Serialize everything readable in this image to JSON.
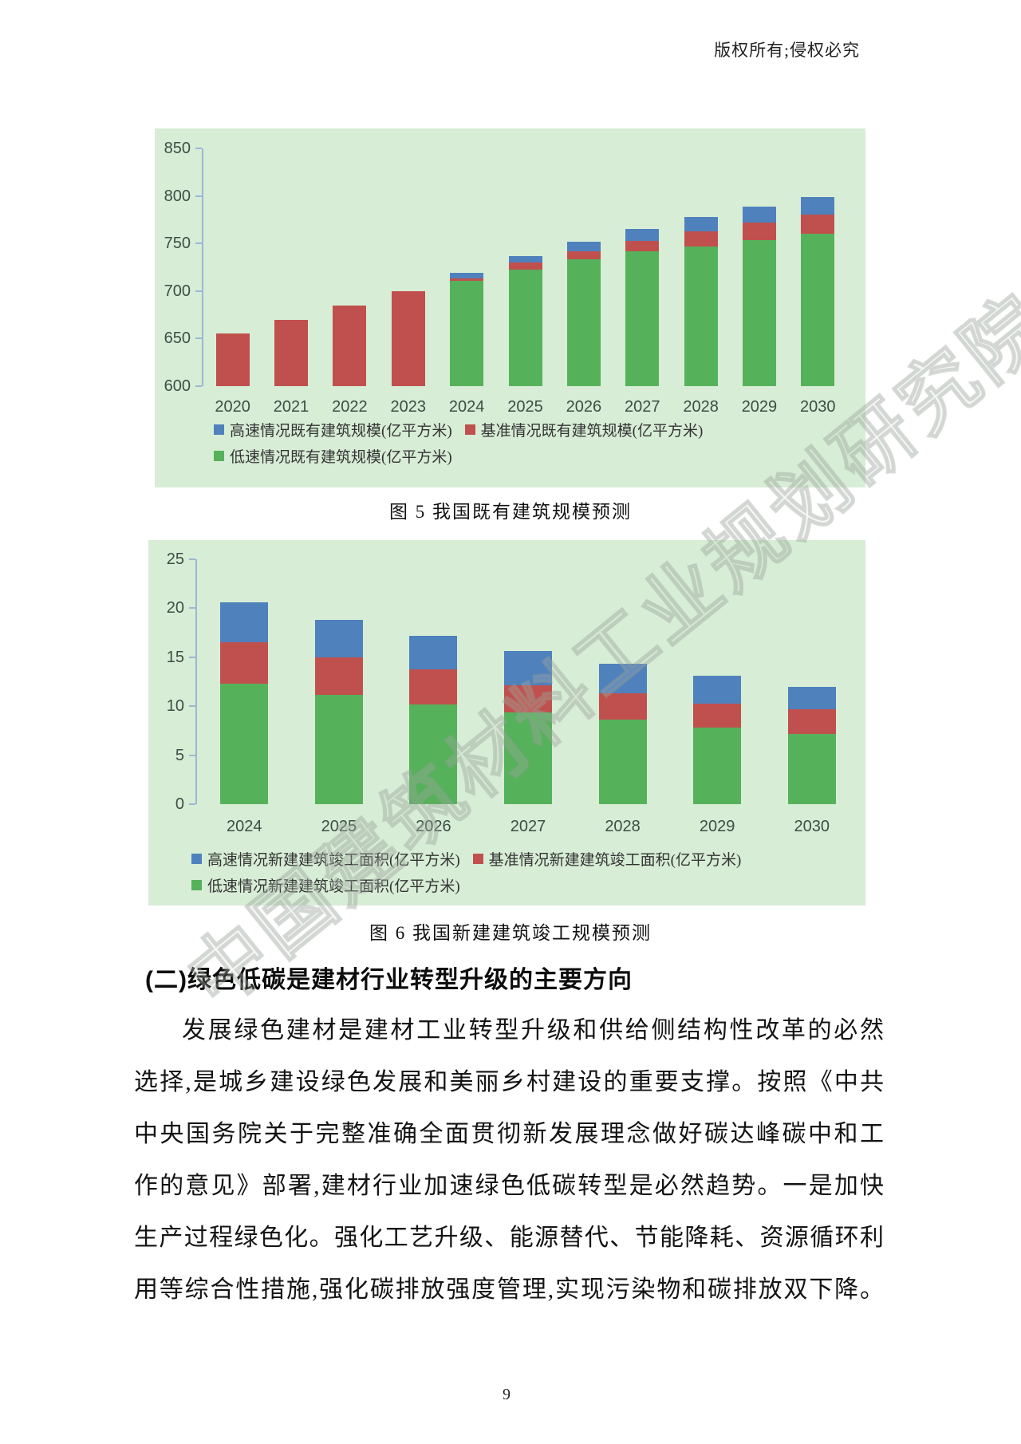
{
  "page": {
    "copyright": "版权所有;侵权必究",
    "page_number": "9",
    "watermark": "中国建筑材料工业规划研究院"
  },
  "section": {
    "heading": "(二)绿色低碳是建材行业转型升级的主要方向",
    "paragraph_lines": [
      "发展绿色建材是建材工业转型升级和供给侧结构性改革的必然",
      "选择,是城乡建设绿色发展和美丽乡村建设的重要支撑。按照《中共",
      "中央国务院关于完整准确全面贯彻新发展理念做好碳达峰碳中和工",
      "作的意见》部署,建材行业加速绿色低碳转型是必然趋势。一是加快",
      "生产过程绿色化。强化工艺升级、能源替代、节能降耗、资源循环利",
      "用等综合性措施,强化碳排放强度管理,实现污染物和碳排放双下降。"
    ]
  },
  "chart_data": [
    {
      "type": "bar",
      "subtype": "stacked-scenario",
      "title": "图 5  我国既有建筑规模预测",
      "categories": [
        "2020",
        "2021",
        "2022",
        "2023",
        "2024",
        "2025",
        "2026",
        "2027",
        "2028",
        "2029",
        "2030"
      ],
      "ylim": [
        600,
        850
      ],
      "yticks": [
        600,
        650,
        700,
        750,
        800,
        850
      ],
      "grid": false,
      "legend_position": "bottom",
      "panel_bg": "#d7edd6",
      "axis_color": "#9db7d6",
      "note": "values are scenario totals; bars drawn stacked low(green)->baseline(red)->high(blue) from axis min 600; 2020-2023 historical years show baseline only",
      "series": [
        {
          "key": "low",
          "name": "低速情况既有建筑规模(亿平方米)",
          "color": "#56b15b",
          "values": [
            null,
            null,
            null,
            null,
            711,
            722,
            733,
            742,
            747,
            754,
            760
          ]
        },
        {
          "key": "base",
          "name": "基准情况既有建筑规模(亿平方米)",
          "color": "#c0504d",
          "values": [
            655,
            670,
            685,
            700,
            713,
            730,
            742,
            753,
            763,
            772,
            780
          ]
        },
        {
          "key": "high",
          "name": "高速情况既有建筑规模(亿平方米)",
          "color": "#4f81bd",
          "values": [
            null,
            null,
            null,
            null,
            719,
            737,
            752,
            765,
            778,
            789,
            799
          ]
        }
      ]
    },
    {
      "type": "bar",
      "subtype": "stacked-scenario",
      "title": "图 6  我国新建建筑竣工规模预测",
      "categories": [
        "2024",
        "2025",
        "2026",
        "2027",
        "2028",
        "2029",
        "2030"
      ],
      "ylim": [
        0,
        25
      ],
      "yticks": [
        0,
        5,
        10,
        15,
        20,
        25
      ],
      "grid": false,
      "legend_position": "bottom",
      "panel_bg": "#d7edd6",
      "axis_color": "#9db7d6",
      "note": "values are scenario totals; bars drawn stacked low(green)->baseline(red)->high(blue) from 0",
      "series": [
        {
          "key": "low",
          "name": "低速情况新建建筑竣工面积(亿平方米)",
          "color": "#56b15b",
          "values": [
            12.3,
            11.2,
            10.2,
            9.4,
            8.6,
            7.8,
            7.2
          ]
        },
        {
          "key": "base",
          "name": "基准情况新建建筑竣工面积(亿平方米)",
          "color": "#c0504d",
          "values": [
            16.5,
            15,
            13.8,
            12.1,
            11.3,
            10.3,
            9.7
          ]
        },
        {
          "key": "high",
          "name": "高速情况新建建筑竣工面积(亿平方米)",
          "color": "#4f81bd",
          "values": [
            20.6,
            18.8,
            17.2,
            15.6,
            14.3,
            13.1,
            12
          ]
        }
      ]
    }
  ]
}
